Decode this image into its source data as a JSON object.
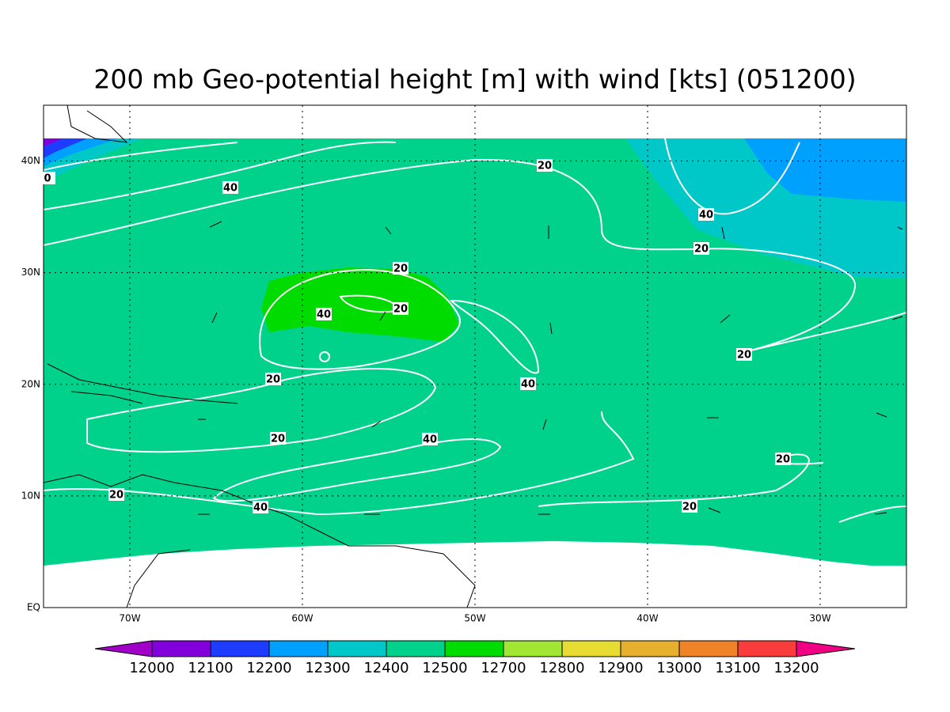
{
  "title": "200 mb Geo-potential height [m] with wind [kts] (051200)",
  "map": {
    "lonlim": [
      -75,
      -25
    ],
    "latlim": [
      0,
      45
    ],
    "lon_ticks": [
      {
        "value": -70,
        "label": "70W"
      },
      {
        "value": -60,
        "label": "60W"
      },
      {
        "value": -50,
        "label": "50W"
      },
      {
        "value": -40,
        "label": "40W"
      },
      {
        "value": -30,
        "label": "30W"
      }
    ],
    "lat_ticks": [
      {
        "value": 0,
        "label": "EQ"
      },
      {
        "value": 10,
        "label": "10N"
      },
      {
        "value": 20,
        "label": "20N"
      },
      {
        "value": 30,
        "label": "30N"
      },
      {
        "value": 40,
        "label": "40N"
      }
    ],
    "contour_labels": [
      0,
      40,
      20,
      40,
      20,
      20,
      20,
      40,
      20,
      40,
      20,
      20,
      40,
      20,
      20,
      40,
      20
    ]
  },
  "colorbar": {
    "levels": [
      12000,
      12100,
      12200,
      12300,
      12400,
      12500,
      12700,
      12800,
      12900,
      13000,
      13100,
      13200
    ],
    "colors": [
      "#a000c8",
      "#8200dc",
      "#1e3cff",
      "#00a0ff",
      "#00c8c8",
      "#00d28c",
      "#00dc00",
      "#a0e632",
      "#e6dc32",
      "#e6af2d",
      "#f08228",
      "#fa3c3c",
      "#f00082"
    ]
  }
}
